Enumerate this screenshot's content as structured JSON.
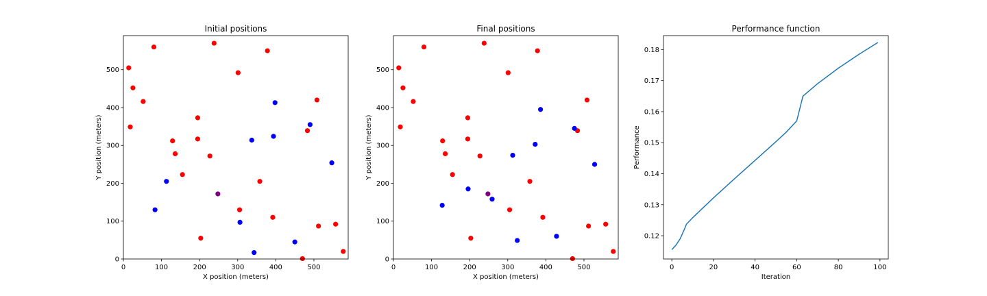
{
  "chart_data": [
    {
      "type": "scatter",
      "title": "Initial positions",
      "xlabel": "X position (meters)",
      "ylabel": "Y position (meters)",
      "xlim": [
        0,
        590
      ],
      "ylim": [
        0,
        590
      ],
      "xticks": [
        0,
        100,
        200,
        300,
        400,
        500
      ],
      "yticks": [
        0,
        100,
        200,
        300,
        400,
        500
      ],
      "colors": {
        "red": "#ff0000",
        "blue": "#0000ff",
        "purple": "#800080"
      },
      "series": [
        {
          "color": "red",
          "points": [
            [
              14,
              505
            ],
            [
              25,
              452
            ],
            [
              18,
              349
            ],
            [
              52,
              416
            ],
            [
              80,
              560
            ],
            [
              129,
              312
            ],
            [
              136,
              278
            ],
            [
              155,
              223
            ],
            [
              195,
              373
            ],
            [
              195,
              317
            ],
            [
              203,
              55
            ],
            [
              227,
              272
            ],
            [
              238,
              570
            ],
            [
              301,
              492
            ],
            [
              305,
              130
            ],
            [
              358,
              205
            ],
            [
              378,
              550
            ],
            [
              392,
              110
            ],
            [
              470,
              1
            ],
            [
              483,
              339
            ],
            [
              508,
              420
            ],
            [
              512,
              87
            ],
            [
              557,
              92
            ],
            [
              577,
              20
            ]
          ]
        },
        {
          "color": "blue",
          "points": [
            [
              83,
              130
            ],
            [
              113,
              205
            ],
            [
              306,
              97
            ],
            [
              337,
              314
            ],
            [
              343,
              17
            ],
            [
              394,
              324
            ],
            [
              398,
              413
            ],
            [
              450,
              45
            ],
            [
              490,
              355
            ],
            [
              547,
              254
            ]
          ]
        },
        {
          "color": "purple",
          "points": [
            [
              248,
              172
            ]
          ]
        }
      ]
    },
    {
      "type": "scatter",
      "title": "Final positions",
      "xlabel": "X position (meters)",
      "ylabel": "Y position (meters)",
      "xlim": [
        0,
        590
      ],
      "ylim": [
        0,
        590
      ],
      "xticks": [
        0,
        100,
        200,
        300,
        400,
        500
      ],
      "yticks": [
        0,
        100,
        200,
        300,
        400,
        500
      ],
      "colors": {
        "red": "#ff0000",
        "blue": "#0000ff",
        "purple": "#800080"
      },
      "series": [
        {
          "color": "red",
          "points": [
            [
              14,
              505
            ],
            [
              25,
              452
            ],
            [
              18,
              349
            ],
            [
              52,
              416
            ],
            [
              80,
              560
            ],
            [
              129,
              312
            ],
            [
              136,
              278
            ],
            [
              155,
              223
            ],
            [
              195,
              373
            ],
            [
              195,
              317
            ],
            [
              203,
              55
            ],
            [
              227,
              272
            ],
            [
              238,
              570
            ],
            [
              301,
              492
            ],
            [
              305,
              130
            ],
            [
              358,
              205
            ],
            [
              378,
              550
            ],
            [
              392,
              110
            ],
            [
              470,
              1
            ],
            [
              483,
              339
            ],
            [
              508,
              420
            ],
            [
              512,
              87
            ],
            [
              557,
              92
            ],
            [
              577,
              20
            ]
          ]
        },
        {
          "color": "blue",
          "points": [
            [
              128,
              142
            ],
            [
              196,
              185
            ],
            [
              259,
              158
            ],
            [
              313,
              274
            ],
            [
              325,
              49
            ],
            [
              372,
              303
            ],
            [
              386,
              395
            ],
            [
              428,
              60
            ],
            [
              475,
              345
            ],
            [
              528,
              250
            ]
          ]
        },
        {
          "color": "purple",
          "points": [
            [
              248,
              172
            ]
          ]
        }
      ]
    },
    {
      "type": "line",
      "title": "Performance function",
      "xlabel": "Iteration",
      "ylabel": "Performance",
      "xlim": [
        -4,
        104
      ],
      "ylim": [
        0.1125,
        0.1845
      ],
      "xticks": [
        0,
        20,
        40,
        60,
        80,
        100
      ],
      "yticks": [
        0.12,
        0.13,
        0.14,
        0.15,
        0.16,
        0.17,
        0.18
      ],
      "colors": {
        "line": "#1f77b4"
      },
      "series": [
        {
          "x": [
            0,
            2,
            4,
            6,
            7,
            10,
            20,
            30,
            40,
            50,
            55,
            60,
            63,
            70,
            80,
            90,
            99
          ],
          "y": [
            0.1155,
            0.117,
            0.119,
            0.122,
            0.1237,
            0.1258,
            0.1322,
            0.1383,
            0.1443,
            0.1503,
            0.1534,
            0.157,
            0.165,
            0.169,
            0.174,
            0.1785,
            0.1823
          ]
        }
      ]
    }
  ]
}
